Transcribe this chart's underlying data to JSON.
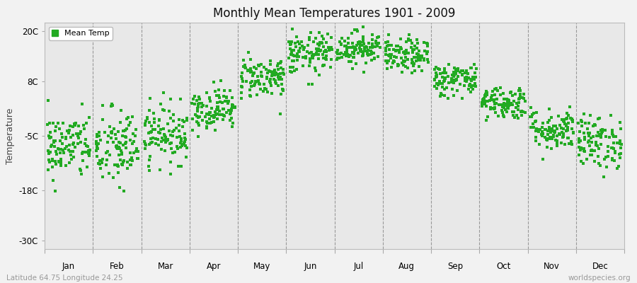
{
  "title": "Monthly Mean Temperatures 1901 - 2009",
  "ylabel": "Temperature",
  "footer_left": "Latitude 64.75 Longitude 24.25",
  "footer_right": "worldspecies.org",
  "legend_label": "Mean Temp",
  "marker_color": "#22aa22",
  "bg_color": "#f2f2f2",
  "plot_bg": "#e8e8e8",
  "yticks": [
    -30,
    -18,
    -5,
    8,
    20
  ],
  "ytick_labels": [
    "-30C",
    "-18C",
    "-5C",
    "8C",
    "20C"
  ],
  "ylim": [
    -32,
    22
  ],
  "months": [
    "Jan",
    "Feb",
    "Mar",
    "Apr",
    "May",
    "Jun",
    "Jul",
    "Aug",
    "Sep",
    "Oct",
    "Nov",
    "Dec"
  ],
  "mean_temps": [
    -7.5,
    -8.0,
    -4.5,
    1.5,
    9.0,
    14.5,
    16.0,
    14.0,
    8.5,
    3.0,
    -3.5,
    -6.5
  ],
  "std_temps": [
    4.0,
    4.8,
    3.5,
    2.5,
    2.5,
    2.5,
    2.0,
    2.0,
    2.0,
    2.0,
    2.5,
    3.2
  ],
  "n_years": 109,
  "seed": 42,
  "marker_size": 5,
  "figwidth": 9.0,
  "figheight": 4.0,
  "dpi": 100
}
